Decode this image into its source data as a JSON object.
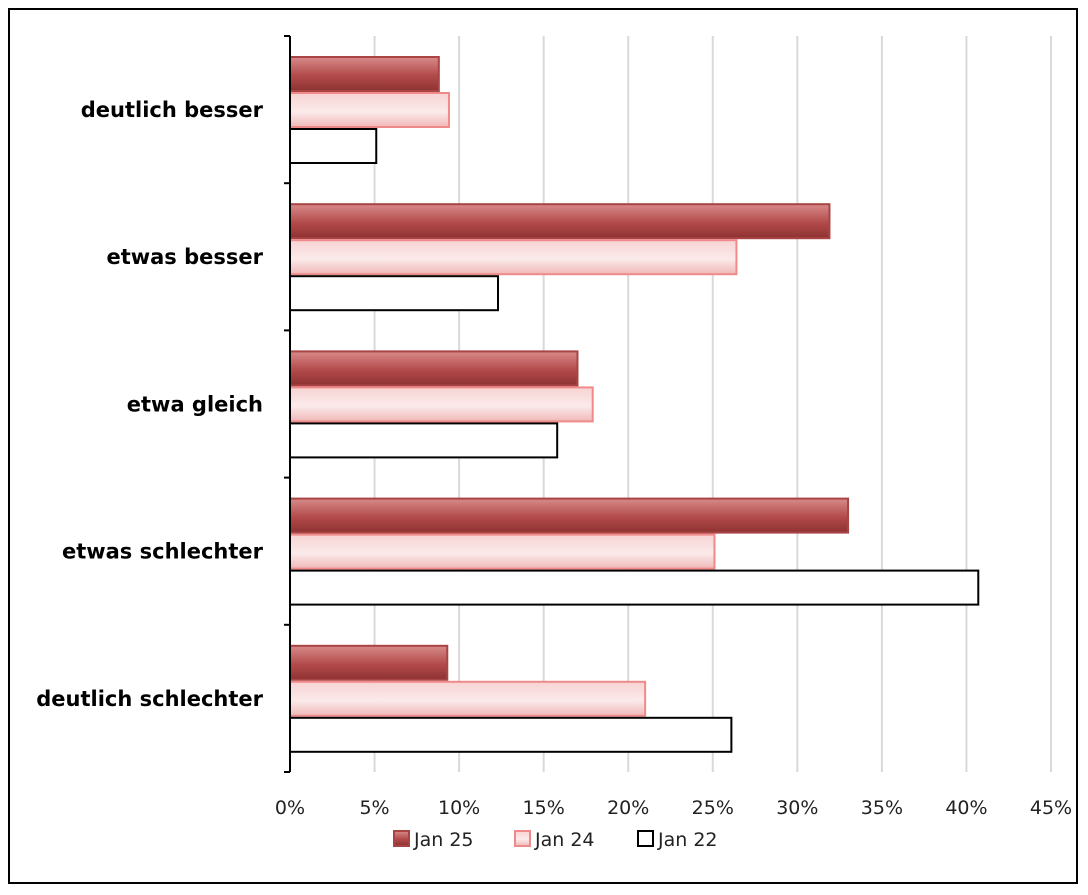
{
  "chart_data": {
    "type": "bar",
    "orientation": "horizontal",
    "title": "",
    "xlabel": "",
    "ylabel": "",
    "categories": [
      "deutlich besser",
      "etwas besser",
      "etwa gleich",
      "etwas schlechter",
      "deutlich schlechter"
    ],
    "series": [
      {
        "name": "Jan 25",
        "values": [
          8.8,
          31.9,
          17.0,
          33.0,
          9.3
        ],
        "color": "#b04848"
      },
      {
        "name": "Jan 24",
        "values": [
          9.4,
          26.4,
          17.9,
          25.1,
          21.0
        ],
        "color": "#f4c2c2"
      },
      {
        "name": "Jan 22",
        "values": [
          5.1,
          12.3,
          15.8,
          40.7,
          26.1
        ],
        "color": "#ffffff"
      }
    ],
    "xlim": [
      0,
      45
    ],
    "x_ticks": [
      "0%",
      "5%",
      "10%",
      "15%",
      "20%",
      "25%",
      "30%",
      "35%",
      "40%",
      "45%"
    ],
    "grid": true,
    "legend_position": "bottom"
  }
}
